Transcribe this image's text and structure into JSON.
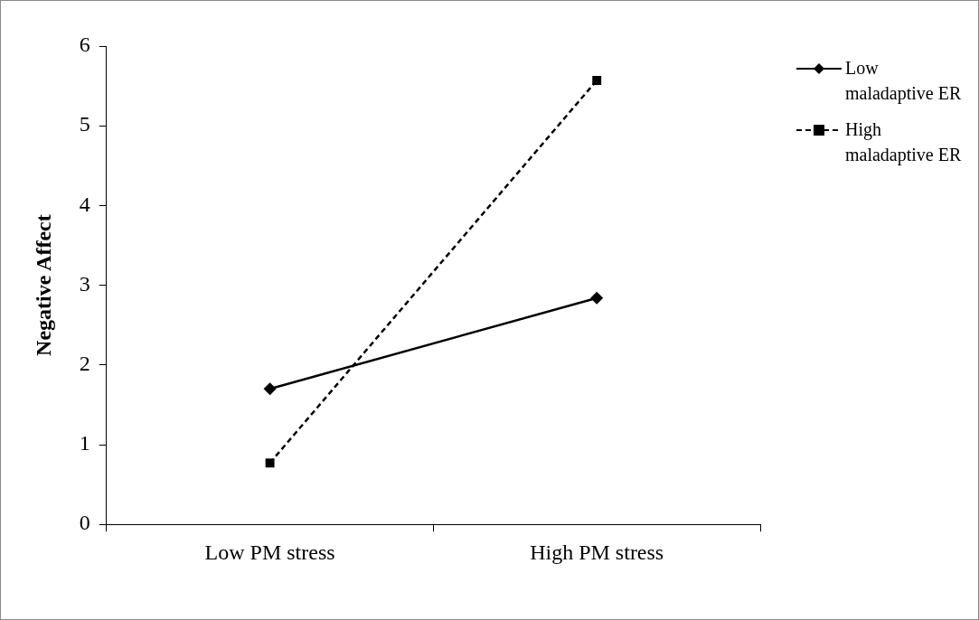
{
  "chart_data": {
    "type": "line",
    "ylabel": "Negative Affect",
    "categories": [
      "Low PM stress",
      "High PM stress"
    ],
    "series": [
      {
        "name": "Low maladaptive ER",
        "color": "#000000",
        "values": [
          1.7,
          2.84
        ],
        "marker": "diamond",
        "line_style": "solid"
      },
      {
        "name": "High maladaptive ER",
        "color": "#000000",
        "values": [
          0.77,
          5.57
        ],
        "marker": "square",
        "line_style": "dashed"
      }
    ],
    "ylim": [
      0,
      6
    ],
    "yticks": [
      0,
      1,
      2,
      3,
      4,
      5,
      6
    ],
    "grid": false,
    "legend": "top right"
  }
}
